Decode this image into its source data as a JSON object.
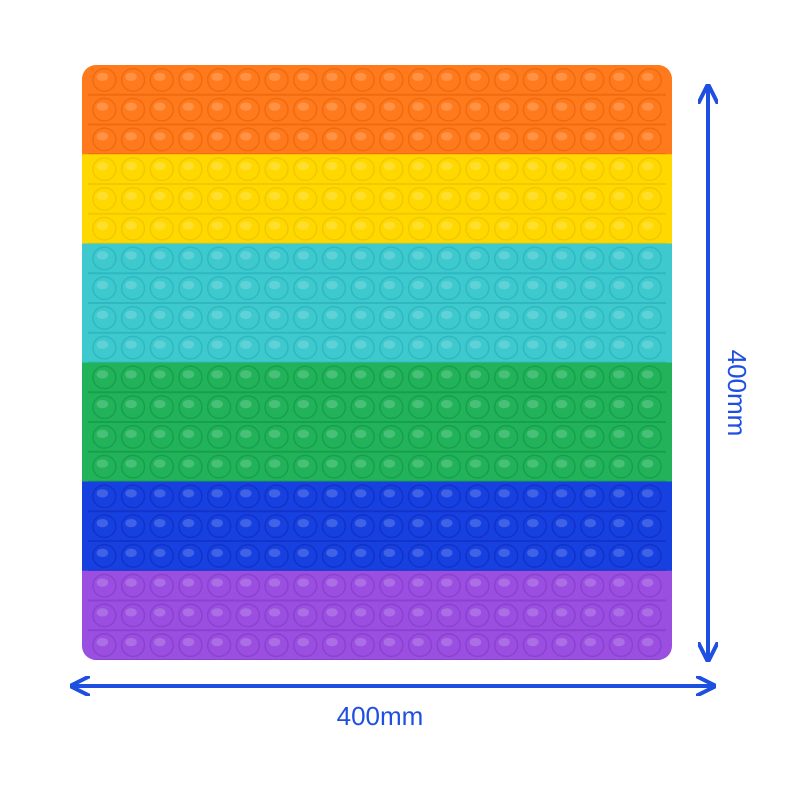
{
  "dimensions": {
    "width_label": "400mm",
    "height_label": "400mm"
  }
}
